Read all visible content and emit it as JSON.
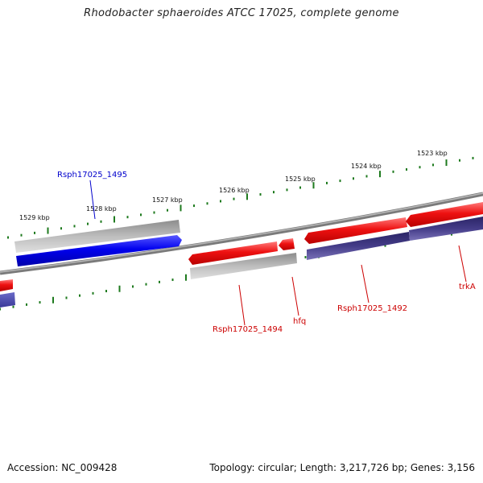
{
  "title": "Rhodobacter sphaeroides ATCC 17025, complete genome",
  "footer": {
    "accession": "Accession: NC_009428",
    "topology": "Topology: circular; Length: 3,217,726 bp; Genes: 3,156"
  },
  "ruler": {
    "labels": [
      "1523 kbp",
      "1524 kbp",
      "1525 kbp",
      "1526 kbp",
      "1527 kbp",
      "1528 kbp",
      "1529 kbp"
    ]
  },
  "genes": [
    {
      "name": "Rsph17025_1495",
      "color": "#0000cc"
    },
    {
      "name": "Rsph17025_1494",
      "color": "#cc0000"
    },
    {
      "name": "hfq",
      "color": "#cc0000"
    },
    {
      "name": "Rsph17025_1492",
      "color": "#cc0000"
    },
    {
      "name": "trkA",
      "color": "#cc0000"
    }
  ],
  "colors": {
    "forward_strand": "#ee1111",
    "reverse_strand": "#0000ee",
    "rna_strand": "#443c88",
    "neutral_strand": "#a8a8a8",
    "backbone": "#888888",
    "tick": "#1e7a1e"
  }
}
